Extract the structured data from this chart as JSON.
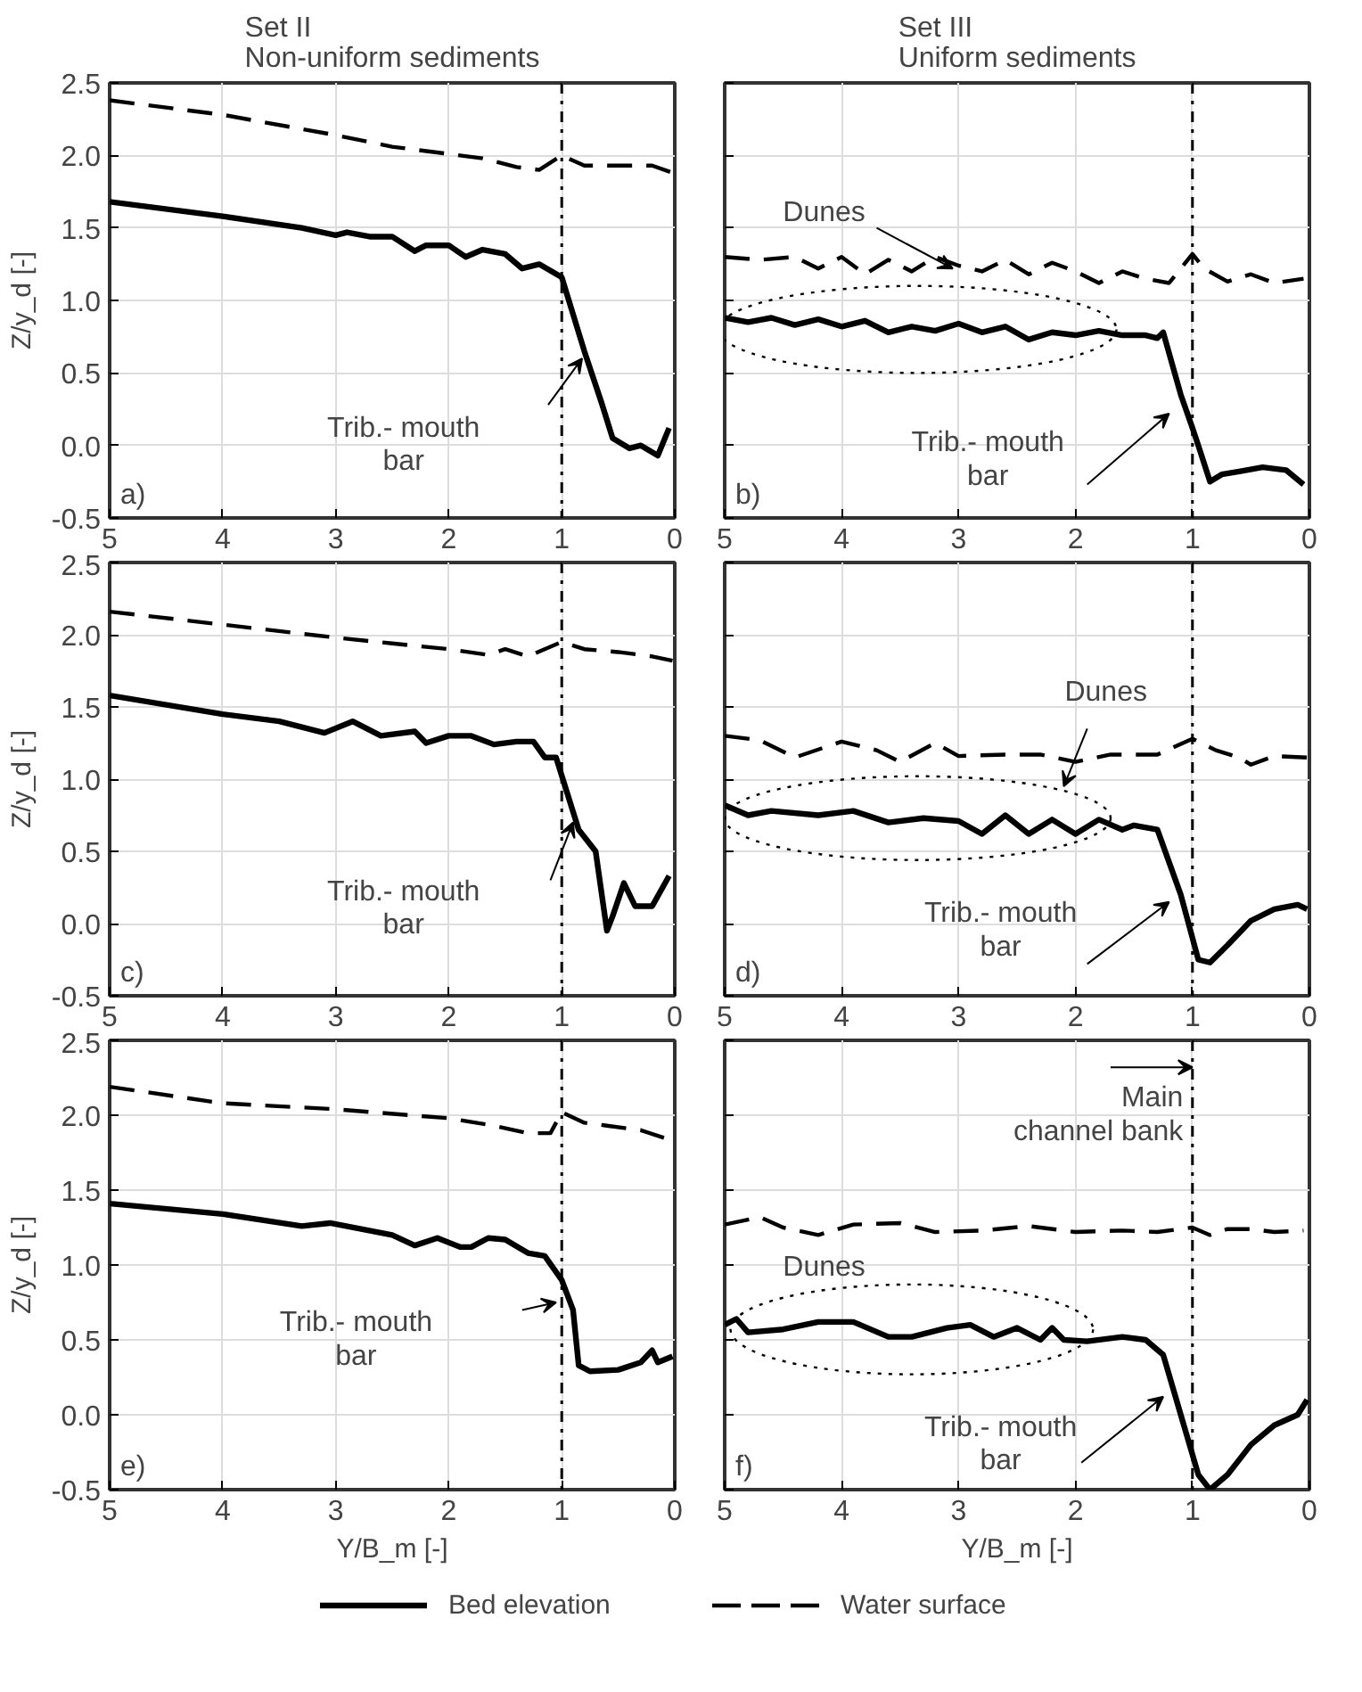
{
  "chart_data": [
    {
      "type": "line",
      "title": "Set II\nNon-uniform sediments",
      "ylabel": "Z/y_d [-]",
      "xlim": [
        5,
        0
      ],
      "xticks": [
        5,
        4,
        3,
        2,
        1,
        0
      ],
      "ylim": [
        -0.5,
        2.5
      ],
      "yticks": [
        {
          "value": -0.5,
          "label": "-0.5"
        },
        {
          "value": 0,
          "label": "0.0"
        },
        0.5,
        {
          "value": 1,
          "label": "1.0"
        },
        1.5,
        {
          "value": 2,
          "label": "2.0"
        },
        2.5
      ],
      "grid": true,
      "series": [
        {
          "color": "#000000",
          "line_style": "solid",
          "x": [
            5,
            4,
            3.3,
            3,
            2.9,
            2.7,
            2.5,
            2.3,
            2.2,
            2,
            1.85,
            1.7,
            1.5,
            1.35,
            1.2,
            1,
            0.8,
            0.65,
            0.55,
            0.4,
            0.3,
            0.15,
            0.05
          ],
          "values": [
            1.68,
            1.58,
            1.5,
            1.45,
            1.47,
            1.44,
            1.44,
            1.34,
            1.38,
            1.38,
            1.3,
            1.35,
            1.32,
            1.22,
            1.25,
            1.16,
            0.65,
            0.3,
            0.05,
            -0.02,
            0,
            -0.07,
            0.12
          ]
        },
        {
          "color": "#000000",
          "line_style": "dashed",
          "x": [
            5,
            4,
            3,
            2.5,
            2,
            1.7,
            1.4,
            1.2,
            1,
            0.8,
            0.5,
            0.2,
            0.02
          ],
          "values": [
            2.38,
            2.28,
            2.14,
            2.06,
            2.01,
            1.98,
            1.92,
            1.9,
            2,
            1.93,
            1.93,
            1.93,
            1.88
          ]
        }
      ],
      "ref_lines": [
        {
          "axis": "x",
          "value": 1,
          "line_style": "dashdot",
          "color": "#000000"
        }
      ],
      "annotations": [
        "a)",
        "Trib.- mouth\nbar"
      ]
    },
    {
      "type": "line",
      "title": "Set III\nUniform sediments",
      "xlim": [
        5,
        0
      ],
      "xticks": [
        5,
        4,
        3,
        2,
        1,
        0
      ],
      "ylim": [
        -0.5,
        2.5
      ],
      "yticks": [
        -0.5,
        0,
        0.5,
        1,
        1.5,
        2,
        2.5
      ],
      "grid": true,
      "tick_labels": "x",
      "series": [
        {
          "color": "#000000",
          "line_style": "solid",
          "x": [
            5,
            4.8,
            4.6,
            4.4,
            4.2,
            4,
            3.8,
            3.6,
            3.4,
            3.2,
            3,
            2.8,
            2.6,
            2.4,
            2.2,
            2,
            1.8,
            1.6,
            1.4,
            1.3,
            1.25,
            1.1,
            1,
            0.95,
            0.85,
            0.75,
            0.6,
            0.4,
            0.2,
            0.05
          ],
          "values": [
            0.88,
            0.85,
            0.88,
            0.83,
            0.87,
            0.82,
            0.86,
            0.78,
            0.82,
            0.79,
            0.84,
            0.78,
            0.82,
            0.73,
            0.78,
            0.76,
            0.79,
            0.76,
            0.76,
            0.74,
            0.78,
            0.35,
            0.12,
            0,
            -0.25,
            -0.2,
            -0.18,
            -0.15,
            -0.17,
            -0.27
          ]
        },
        {
          "color": "#000000",
          "line_style": "dashed",
          "x": [
            5,
            4.7,
            4.4,
            4.2,
            4,
            3.8,
            3.6,
            3.4,
            3.2,
            3,
            2.8,
            2.6,
            2.4,
            2.2,
            2,
            1.8,
            1.6,
            1.4,
            1.2,
            1,
            0.9,
            0.7,
            0.5,
            0.3,
            0.05
          ],
          "values": [
            1.3,
            1.28,
            1.3,
            1.22,
            1.3,
            1.18,
            1.28,
            1.2,
            1.3,
            1.24,
            1.2,
            1.28,
            1.18,
            1.26,
            1.2,
            1.12,
            1.2,
            1.15,
            1.12,
            1.32,
            1.22,
            1.13,
            1.18,
            1.12,
            1.15
          ]
        }
      ],
      "ref_lines": [
        {
          "axis": "x",
          "value": 1,
          "line_style": "dashdot",
          "color": "#000000"
        }
      ],
      "annotations": [
        "b)",
        {
          "text": "Dunes",
          "x": 3.05,
          "y": 1.22
        },
        "Trib.- mouth\nbar"
      ]
    },
    {
      "type": "line",
      "ylabel": "Z/y_d [-]",
      "xlim": [
        5,
        0
      ],
      "xticks": [
        5,
        4,
        3,
        2,
        1,
        0
      ],
      "ylim": [
        -0.5,
        2.5
      ],
      "yticks": [
        {
          "value": -0.5,
          "label": "-0.5"
        },
        {
          "value": 0,
          "label": "0.0"
        },
        0.5,
        {
          "value": 1,
          "label": "1.0"
        },
        1.5,
        {
          "value": 2,
          "label": "2.0"
        },
        2.5
      ],
      "grid": true,
      "series": [
        {
          "color": "#000000",
          "line_style": "solid",
          "x": [
            5,
            4,
            3.5,
            3.1,
            2.85,
            2.6,
            2.3,
            2.2,
            2,
            1.8,
            1.6,
            1.4,
            1.25,
            1.15,
            1.05,
            0.95,
            0.85,
            0.7,
            0.6,
            0.55,
            0.45,
            0.35,
            0.2,
            0.05
          ],
          "values": [
            1.58,
            1.45,
            1.4,
            1.32,
            1.4,
            1.3,
            1.33,
            1.25,
            1.3,
            1.3,
            1.24,
            1.26,
            1.26,
            1.15,
            1.15,
            0.9,
            0.65,
            0.5,
            -0.05,
            0.05,
            0.28,
            0.12,
            0.12,
            0.33
          ]
        },
        {
          "color": "#000000",
          "line_style": "dashed",
          "x": [
            5,
            4,
            3,
            2.5,
            2,
            1.65,
            1.5,
            1.3,
            1,
            0.8,
            0.5,
            0.2,
            0.02
          ],
          "values": [
            2.16,
            2.07,
            1.98,
            1.94,
            1.9,
            1.86,
            1.9,
            1.85,
            1.95,
            1.9,
            1.88,
            1.85,
            1.82
          ]
        }
      ],
      "ref_lines": [
        {
          "axis": "x",
          "value": 1,
          "line_style": "dashdot",
          "color": "#000000"
        }
      ],
      "annotations": [
        "c)",
        "Trib.- mouth\nbar"
      ]
    },
    {
      "type": "line",
      "xlim": [
        5,
        0
      ],
      "xticks": [
        5,
        4,
        3,
        2,
        1,
        0
      ],
      "ylim": [
        -0.5,
        2.5
      ],
      "yticks": [
        -0.5,
        0,
        0.5,
        1,
        1.5,
        2,
        2.5
      ],
      "grid": true,
      "tick_labels": "x",
      "series": [
        {
          "color": "#000000",
          "line_style": "solid",
          "x": [
            5,
            4.8,
            4.6,
            4.2,
            3.9,
            3.6,
            3.3,
            3,
            2.8,
            2.6,
            2.4,
            2.2,
            2,
            1.8,
            1.6,
            1.5,
            1.3,
            1.1,
            0.95,
            0.85,
            0.7,
            0.5,
            0.3,
            0.1,
            0.02
          ],
          "values": [
            0.82,
            0.75,
            0.78,
            0.75,
            0.78,
            0.7,
            0.73,
            0.71,
            0.62,
            0.75,
            0.62,
            0.72,
            0.62,
            0.72,
            0.65,
            0.68,
            0.65,
            0.2,
            -0.25,
            -0.27,
            -0.15,
            0.02,
            0.1,
            0.13,
            0.1
          ]
        },
        {
          "color": "#000000",
          "line_style": "dashed",
          "x": [
            5,
            4.7,
            4.4,
            4,
            3.7,
            3.5,
            3.2,
            3,
            2.6,
            2.3,
            2,
            1.7,
            1.3,
            1,
            0.8,
            0.6,
            0.5,
            0.3,
            0.02
          ],
          "values": [
            1.3,
            1.27,
            1.15,
            1.26,
            1.2,
            1.12,
            1.25,
            1.16,
            1.17,
            1.17,
            1.12,
            1.17,
            1.17,
            1.28,
            1.2,
            1.15,
            1.1,
            1.16,
            1.15
          ]
        }
      ],
      "ref_lines": [
        {
          "axis": "x",
          "value": 1,
          "line_style": "dashdot",
          "color": "#000000"
        }
      ],
      "annotations": [
        "d)",
        "Dunes",
        "Trib.- mouth\nbar"
      ]
    },
    {
      "type": "line",
      "xlabel": "Y/B_m [-]",
      "ylabel": "Z/y_d [-]",
      "xlim": [
        5,
        0
      ],
      "xticks": [
        5,
        4,
        3,
        2,
        1,
        0
      ],
      "ylim": [
        -0.5,
        2.5
      ],
      "yticks": [
        {
          "value": -0.5,
          "label": "-0.5"
        },
        {
          "value": 0,
          "label": "0.0"
        },
        0.5,
        {
          "value": 1,
          "label": "1.0"
        },
        1.5,
        {
          "value": 2,
          "label": "2.0"
        },
        2.5
      ],
      "grid": true,
      "series": [
        {
          "color": "#000000",
          "line_style": "solid",
          "x": [
            5,
            4,
            3.3,
            3.05,
            2.5,
            2.3,
            2.1,
            1.9,
            1.8,
            1.65,
            1.5,
            1.3,
            1.15,
            1,
            0.9,
            0.85,
            0.75,
            0.5,
            0.3,
            0.2,
            0.15,
            0.02
          ],
          "values": [
            1.41,
            1.34,
            1.26,
            1.28,
            1.2,
            1.13,
            1.18,
            1.12,
            1.12,
            1.18,
            1.17,
            1.08,
            1.06,
            0.9,
            0.7,
            0.33,
            0.29,
            0.3,
            0.35,
            0.43,
            0.35,
            0.39
          ]
        },
        {
          "color": "#000000",
          "line_style": "dashed",
          "x": [
            5,
            4,
            3,
            2,
            1.6,
            1.3,
            1.1,
            1,
            0.8,
            0.6,
            0.3,
            0.02
          ],
          "values": [
            2.19,
            2.08,
            2.04,
            1.98,
            1.93,
            1.88,
            1.88,
            2.02,
            1.95,
            1.93,
            1.9,
            1.83
          ]
        }
      ],
      "ref_lines": [
        {
          "axis": "x",
          "value": 1,
          "line_style": "dashdot",
          "color": "#000000"
        }
      ],
      "annotations": [
        "e)",
        "Trib.- mouth\nbar"
      ]
    },
    {
      "type": "line",
      "xlabel": "Y/B_m [-]",
      "xlim": [
        5,
        0
      ],
      "xticks": [
        5,
        4,
        3,
        2,
        1,
        0
      ],
      "ylim": [
        -0.5,
        2.5
      ],
      "yticks": [
        -0.5,
        0,
        0.5,
        1,
        1.5,
        2,
        2.5
      ],
      "grid": true,
      "tick_labels": "x",
      "legend": "bottom",
      "series": [
        {
          "name": "Bed elevation",
          "color": "#000000",
          "line_style": "solid",
          "x": [
            5,
            4.9,
            4.8,
            4.5,
            4.2,
            3.9,
            3.6,
            3.4,
            3.1,
            2.9,
            2.7,
            2.5,
            2.3,
            2.2,
            2.1,
            1.9,
            1.6,
            1.4,
            1.25,
            1.1,
            0.95,
            0.85,
            0.7,
            0.5,
            0.3,
            0.1,
            0.02
          ],
          "values": [
            0.6,
            0.64,
            0.55,
            0.57,
            0.62,
            0.62,
            0.52,
            0.52,
            0.58,
            0.6,
            0.52,
            0.58,
            0.5,
            0.58,
            0.5,
            0.49,
            0.52,
            0.5,
            0.4,
            0,
            -0.4,
            -0.5,
            -0.4,
            -0.2,
            -0.07,
            0,
            0.1
          ]
        },
        {
          "name": "Water surface",
          "color": "#000000",
          "line_style": "dashed",
          "x": [
            5,
            4.7,
            4.5,
            4.2,
            3.9,
            3.5,
            3.2,
            2.8,
            2.4,
            2,
            1.6,
            1.3,
            1,
            0.85,
            0.7,
            0.5,
            0.3,
            0.05
          ],
          "values": [
            1.27,
            1.32,
            1.25,
            1.2,
            1.27,
            1.28,
            1.22,
            1.23,
            1.26,
            1.22,
            1.23,
            1.22,
            1.25,
            1.2,
            1.24,
            1.24,
            1.22,
            1.23
          ]
        }
      ],
      "ref_lines": [
        {
          "axis": "x",
          "value": 1,
          "line_style": "dashdot",
          "color": "#000000",
          "label": "Main\nchannel bank"
        }
      ],
      "annotations": [
        "f)",
        "Dunes",
        "Trib.- mouth\nbar"
      ]
    }
  ]
}
